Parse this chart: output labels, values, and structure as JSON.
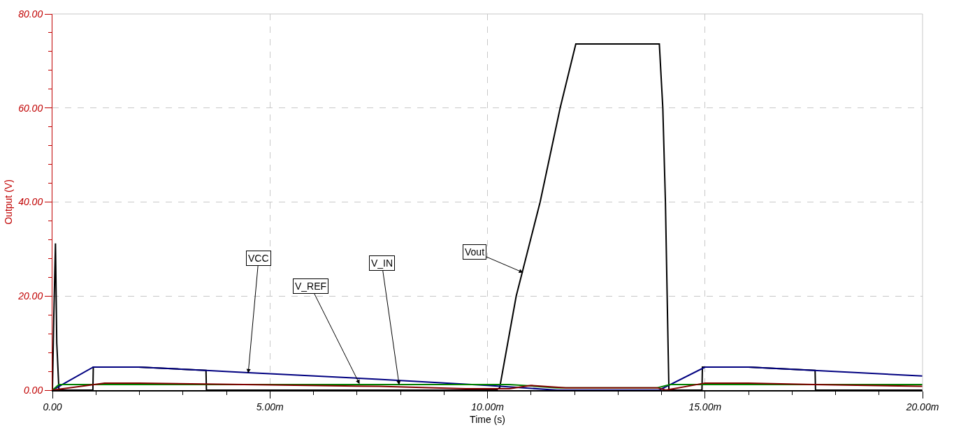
{
  "chart_data": {
    "type": "line",
    "xlabel": "Time (s)",
    "ylabel": "Output (V)",
    "xlim": [
      0,
      20
    ],
    "ylim": [
      0,
      80
    ],
    "xticks": [
      {
        "value": 0,
        "label": "0.00"
      },
      {
        "value": 5,
        "label": "5.00m"
      },
      {
        "value": 10,
        "label": "10.00m"
      },
      {
        "value": 15,
        "label": "15.00m"
      },
      {
        "value": 20,
        "label": "20.00m"
      }
    ],
    "yticks": [
      {
        "value": 0,
        "label": "0.00"
      },
      {
        "value": 20,
        "label": "20.00"
      },
      {
        "value": 40,
        "label": "40.00"
      },
      {
        "value": 60,
        "label": "60.00"
      },
      {
        "value": 80,
        "label": "80.00"
      }
    ],
    "grid": true,
    "legend": false,
    "marker": "none",
    "line_style": "solid",
    "series": [
      {
        "color": "#000000",
        "x": [
          0,
          0.03,
          0.07,
          0.1,
          0.15,
          0.93,
          0.94,
          1.98,
          3.53,
          3.54,
          10.2,
          10.28,
          10.66,
          11.21,
          11.67,
          12.03,
          13.95,
          14.03,
          14.09,
          14.17,
          14.93,
          14.94,
          16.0,
          17.53,
          17.54,
          20
        ],
        "values": [
          0,
          15,
          31.2,
          10,
          0,
          0,
          4.9,
          4.9,
          4.2,
          0,
          0,
          0.5,
          20,
          40,
          60,
          73.6,
          73.6,
          60,
          40,
          0,
          0,
          4.9,
          4.9,
          4.2,
          0,
          0
        ]
      },
      {
        "color": "#000080",
        "x": [
          0,
          0.94,
          1.98,
          3.53,
          4.5,
          5,
          7.5,
          10,
          11.6,
          13.95,
          15,
          16,
          17.5,
          20
        ],
        "values": [
          0,
          4.9,
          4.9,
          4.2,
          3.7,
          3.5,
          2.3,
          1.0,
          0,
          0,
          4.9,
          4.9,
          4.2,
          3.0
        ]
      },
      {
        "color": "#008000",
        "x": [
          0,
          0.15,
          10.5,
          11.6,
          13.9,
          14.2,
          20
        ],
        "values": [
          0,
          1.2,
          1.2,
          0.5,
          0.5,
          1.2,
          1.2
        ]
      },
      {
        "color": "#800000",
        "x": [
          0,
          1.2,
          2,
          3.5,
          5,
          7.5,
          9.5,
          10.5,
          11,
          11.8,
          13.9,
          14.1,
          15,
          16,
          17.5,
          20
        ],
        "values": [
          0,
          1.5,
          1.5,
          1.3,
          1.1,
          0.8,
          0.3,
          0.3,
          1.0,
          0.5,
          0.5,
          0,
          1.5,
          1.5,
          1.2,
          0.8
        ]
      }
    ],
    "annotations": [
      {
        "text": "VCC",
        "x": 4.5,
        "y": 3.6
      },
      {
        "text": "V_REF",
        "x": 7.06,
        "y": 1.3
      },
      {
        "text": "V_IN",
        "x": 7.97,
        "y": 1.1
      },
      {
        "text": "Vout",
        "x": 10.82,
        "y": 25
      }
    ]
  }
}
